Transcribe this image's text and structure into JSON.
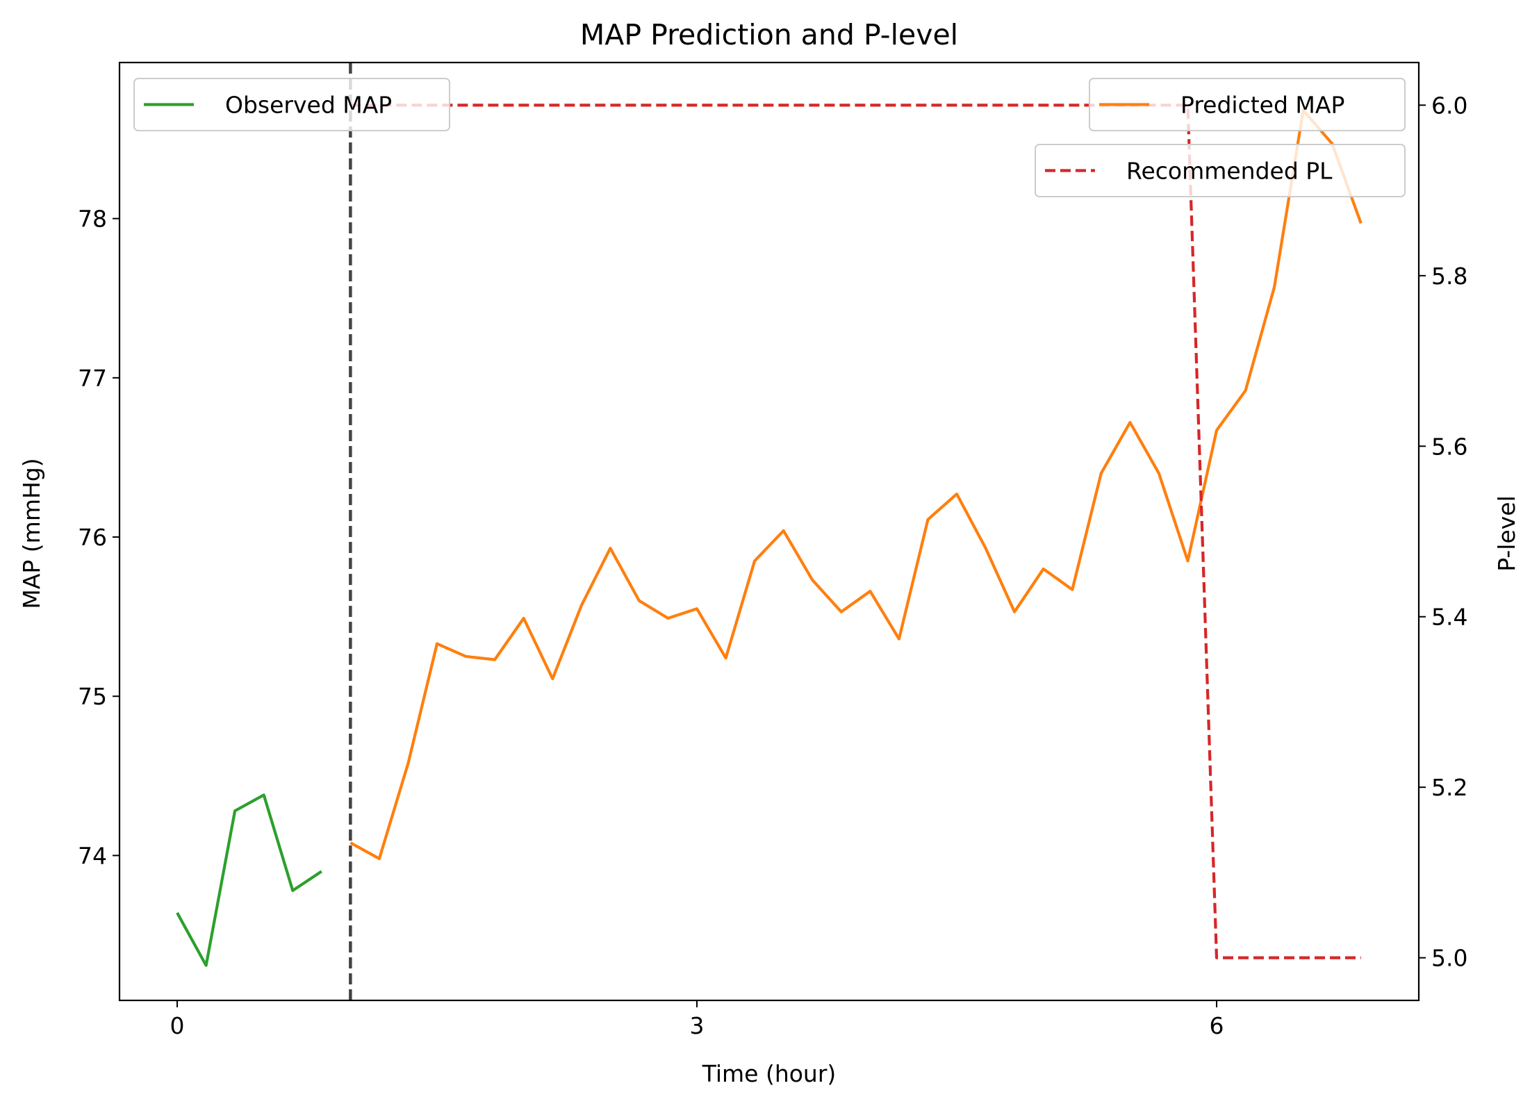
{
  "chart_data": {
    "type": "line",
    "title": "MAP Prediction and P-level",
    "xlabel": "Time (hour)",
    "ylabel": "MAP (mmHg)",
    "y2label": "P-level",
    "xlim": [
      -0.333,
      7.167
    ],
    "ylim": [
      73.09,
      78.98
    ],
    "y2lim": [
      4.95,
      6.05
    ],
    "xticks": [
      0,
      3,
      6
    ],
    "yticks": [
      74,
      75,
      76,
      77,
      78
    ],
    "y2ticks": [
      5.0,
      5.2,
      5.4,
      5.6,
      5.8,
      6.0
    ],
    "grid": false,
    "legend_placement": [
      "top-left",
      "top-right"
    ],
    "divider_x": 1.0,
    "series": [
      {
        "name": "Observed MAP",
        "axis": "left",
        "color": "#2ca02c",
        "style": "solid",
        "x": [
          0,
          0.1667,
          0.3333,
          0.5,
          0.6667,
          0.8333
        ],
        "y": [
          73.64,
          73.31,
          74.28,
          74.38,
          73.78,
          73.9
        ]
      },
      {
        "name": "Predicted MAP",
        "axis": "left",
        "color": "#ff7f0e",
        "style": "solid",
        "x": [
          1.0,
          1.1667,
          1.3333,
          1.5,
          1.6667,
          1.8333,
          2.0,
          2.1667,
          2.3333,
          2.5,
          2.6667,
          2.8333,
          3.0,
          3.1667,
          3.3333,
          3.5,
          3.6667,
          3.8333,
          4.0,
          4.1667,
          4.3333,
          4.5,
          4.6667,
          4.8333,
          5.0,
          5.1667,
          5.3333,
          5.5,
          5.6667,
          5.8333,
          6.0,
          6.1667,
          6.3333,
          6.5,
          6.6667,
          6.8333
        ],
        "y": [
          74.08,
          73.98,
          74.58,
          75.33,
          75.25,
          75.23,
          75.49,
          75.11,
          75.57,
          75.93,
          75.6,
          75.49,
          75.55,
          75.24,
          75.85,
          76.04,
          75.73,
          75.53,
          75.66,
          75.36,
          76.11,
          76.27,
          75.93,
          75.53,
          75.8,
          75.67,
          76.4,
          76.72,
          76.4,
          75.85,
          76.67,
          76.92,
          77.57,
          78.68,
          78.47,
          77.97
        ]
      },
      {
        "name": "Recommended PL",
        "axis": "right",
        "color": "#d62728",
        "style": "dashed",
        "x": [
          1.0,
          1.1667,
          1.3333,
          1.5,
          1.6667,
          1.8333,
          2.0,
          2.1667,
          2.3333,
          2.5,
          2.6667,
          2.8333,
          3.0,
          3.1667,
          3.3333,
          3.5,
          3.6667,
          3.8333,
          4.0,
          4.1667,
          4.3333,
          4.5,
          4.6667,
          4.8333,
          5.0,
          5.1667,
          5.3333,
          5.5,
          5.6667,
          5.8333,
          6.0,
          6.1667,
          6.3333,
          6.5,
          6.6667,
          6.8333
        ],
        "y": [
          6.0,
          6.0,
          6.0,
          6.0,
          6.0,
          6.0,
          6.0,
          6.0,
          6.0,
          6.0,
          6.0,
          6.0,
          6.0,
          6.0,
          6.0,
          6.0,
          6.0,
          6.0,
          6.0,
          6.0,
          6.0,
          6.0,
          6.0,
          6.0,
          6.0,
          6.0,
          6.0,
          6.0,
          6.0,
          6.0,
          5.0,
          5.0,
          5.0,
          5.0,
          5.0,
          5.0
        ]
      }
    ]
  }
}
